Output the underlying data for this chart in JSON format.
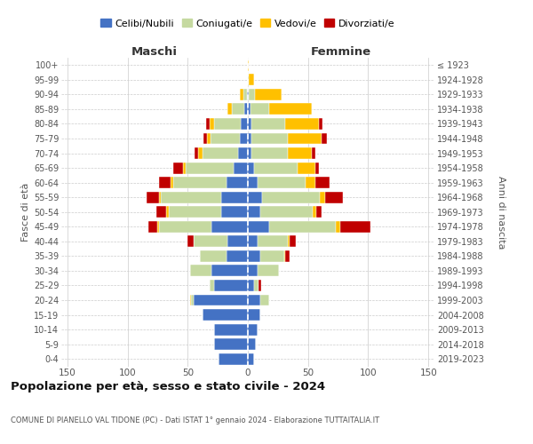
{
  "age_groups": [
    "100+",
    "95-99",
    "90-94",
    "85-89",
    "80-84",
    "75-79",
    "70-74",
    "65-69",
    "60-64",
    "55-59",
    "50-54",
    "45-49",
    "40-44",
    "35-39",
    "30-34",
    "25-29",
    "20-24",
    "15-19",
    "10-14",
    "5-9",
    "0-4"
  ],
  "birth_years": [
    "≤ 1923",
    "1924-1928",
    "1929-1933",
    "1934-1938",
    "1939-1943",
    "1944-1948",
    "1949-1953",
    "1954-1958",
    "1959-1963",
    "1964-1968",
    "1969-1973",
    "1974-1978",
    "1979-1983",
    "1984-1988",
    "1989-1993",
    "1994-1998",
    "1999-2003",
    "2004-2008",
    "2009-2013",
    "2014-2018",
    "2019-2023"
  ],
  "colors": {
    "celibi": "#4472c4",
    "coniugati": "#c5d9a0",
    "vedovi": "#ffc000",
    "divorziati": "#c00000"
  },
  "maschi": {
    "celibi": [
      0,
      0,
      1,
      3,
      6,
      7,
      8,
      12,
      18,
      22,
      22,
      30,
      17,
      18,
      30,
      28,
      45,
      38,
      28,
      28,
      24
    ],
    "coniugati": [
      0,
      0,
      3,
      10,
      22,
      24,
      30,
      40,
      44,
      50,
      44,
      44,
      28,
      22,
      18,
      4,
      2,
      0,
      0,
      0,
      0
    ],
    "vedovi": [
      0,
      0,
      3,
      4,
      4,
      3,
      3,
      2,
      2,
      2,
      2,
      1,
      0,
      0,
      0,
      0,
      1,
      0,
      0,
      0,
      0
    ],
    "divorziati": [
      0,
      0,
      0,
      0,
      3,
      3,
      3,
      8,
      10,
      10,
      8,
      8,
      5,
      0,
      0,
      0,
      0,
      0,
      0,
      0,
      0
    ]
  },
  "femmine": {
    "celibi": [
      0,
      0,
      1,
      2,
      3,
      3,
      3,
      5,
      8,
      12,
      10,
      18,
      8,
      10,
      8,
      5,
      10,
      10,
      8,
      7,
      5
    ],
    "coniugati": [
      0,
      1,
      5,
      16,
      28,
      30,
      30,
      36,
      40,
      48,
      44,
      55,
      25,
      20,
      18,
      4,
      8,
      0,
      0,
      0,
      0
    ],
    "vedovi": [
      1,
      4,
      22,
      35,
      28,
      28,
      20,
      15,
      8,
      4,
      3,
      4,
      2,
      1,
      0,
      0,
      0,
      0,
      0,
      0,
      0
    ],
    "divorziati": [
      0,
      0,
      0,
      0,
      3,
      5,
      3,
      3,
      12,
      15,
      4,
      25,
      5,
      4,
      0,
      2,
      0,
      0,
      0,
      0,
      0
    ]
  },
  "title": "Popolazione per età, sesso e stato civile - 2024",
  "subtitle": "COMUNE DI PIANELLO VAL TIDONE (PC) - Dati ISTAT 1° gennaio 2024 - Elaborazione TUTTAITALIA.IT",
  "header_left": "Maschi",
  "header_right": "Femmine",
  "ylabel_left": "Fasce di età",
  "ylabel_right": "Anni di nascita",
  "xlim": 155,
  "background_color": "#ffffff",
  "grid_color": "#cccccc",
  "legend_labels": [
    "Celibi/Nubili",
    "Coniugati/e",
    "Vedovi/e",
    "Divorziati/e"
  ]
}
